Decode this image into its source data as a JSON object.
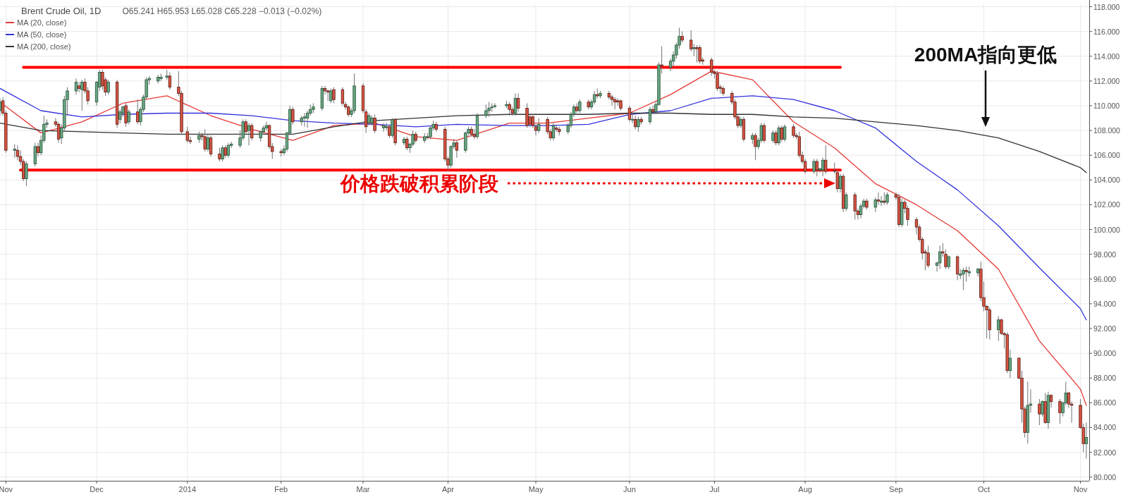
{
  "chart_data": {
    "type": "candlestick",
    "title": "Brent Crude Oil, 1D",
    "subtitle": "O65.241 H65.953 L65.028 C65.228 −0.013 (−0.02%)",
    "x": [
      "2013-10-30",
      "2013-10-31",
      "2013-11-01",
      "2013-11-04",
      "2013-11-05",
      "2013-11-06",
      "2013-11-07",
      "2013-11-08",
      "2013-11-11",
      "2013-11-12",
      "2013-11-13",
      "2013-11-14",
      "2013-11-15",
      "2013-11-18",
      "2013-11-19",
      "2013-11-20",
      "2013-11-21",
      "2013-11-22",
      "2013-11-25",
      "2013-11-26",
      "2013-11-27",
      "2013-11-28",
      "2013-11-29",
      "2013-12-02",
      "2013-12-03",
      "2013-12-04",
      "2013-12-05",
      "2013-12-06",
      "2013-12-09",
      "2013-12-10",
      "2013-12-11",
      "2013-12-12",
      "2013-12-13",
      "2013-12-16",
      "2013-12-17",
      "2013-12-18",
      "2013-12-19",
      "2013-12-20",
      "2013-12-23",
      "2013-12-24",
      "2013-12-26",
      "2013-12-27",
      "2013-12-30",
      "2013-12-31",
      "2014-01-02",
      "2014-01-03",
      "2014-01-06",
      "2014-01-07",
      "2014-01-08",
      "2014-01-09",
      "2014-01-10",
      "2014-01-13",
      "2014-01-14",
      "2014-01-15",
      "2014-01-16",
      "2014-01-17",
      "2014-01-20",
      "2014-01-21",
      "2014-01-22",
      "2014-01-23",
      "2014-01-24",
      "2014-01-27",
      "2014-01-28",
      "2014-01-29",
      "2014-01-30",
      "2014-01-31",
      "2014-02-03",
      "2014-02-04",
      "2014-02-05",
      "2014-02-06",
      "2014-02-07",
      "2014-02-10",
      "2014-02-11",
      "2014-02-12",
      "2014-02-13",
      "2014-02-14",
      "2014-02-17",
      "2014-02-18",
      "2014-02-19",
      "2014-02-20",
      "2014-02-21",
      "2014-02-24",
      "2014-02-25",
      "2014-02-26",
      "2014-02-27",
      "2014-02-28",
      "2014-03-03",
      "2014-03-04",
      "2014-03-05",
      "2014-03-06",
      "2014-03-07",
      "2014-03-10",
      "2014-03-11",
      "2014-03-12",
      "2014-03-13",
      "2014-03-14",
      "2014-03-17",
      "2014-03-18",
      "2014-03-19",
      "2014-03-20",
      "2014-03-21",
      "2014-03-24",
      "2014-03-25",
      "2014-03-26",
      "2014-03-27",
      "2014-03-28",
      "2014-03-31",
      "2014-04-01",
      "2014-04-02",
      "2014-04-03",
      "2014-04-04",
      "2014-04-07",
      "2014-04-08",
      "2014-04-09",
      "2014-04-10",
      "2014-04-11",
      "2014-04-14",
      "2014-04-15",
      "2014-04-16",
      "2014-04-17",
      "2014-04-21",
      "2014-04-22",
      "2014-04-23",
      "2014-04-24",
      "2014-04-25",
      "2014-04-28",
      "2014-04-29",
      "2014-04-30",
      "2014-05-01",
      "2014-05-02",
      "2014-05-05",
      "2014-05-06",
      "2014-05-07",
      "2014-05-08",
      "2014-05-09",
      "2014-05-12",
      "2014-05-13",
      "2014-05-14",
      "2014-05-15",
      "2014-05-16",
      "2014-05-19",
      "2014-05-20",
      "2014-05-21",
      "2014-05-22",
      "2014-05-23",
      "2014-05-26",
      "2014-05-27",
      "2014-05-28",
      "2014-05-29",
      "2014-05-30",
      "2014-06-02",
      "2014-06-03",
      "2014-06-04",
      "2014-06-05",
      "2014-06-06",
      "2014-06-09",
      "2014-06-10",
      "2014-06-11",
      "2014-06-12",
      "2014-06-13",
      "2014-06-16",
      "2014-06-17",
      "2014-06-18",
      "2014-06-19",
      "2014-06-20",
      "2014-06-23",
      "2014-06-24",
      "2014-06-25",
      "2014-06-26",
      "2014-06-27",
      "2014-06-30",
      "2014-07-01",
      "2014-07-02",
      "2014-07-03",
      "2014-07-04",
      "2014-07-07",
      "2014-07-08",
      "2014-07-09",
      "2014-07-10",
      "2014-07-11",
      "2014-07-14",
      "2014-07-15",
      "2014-07-16",
      "2014-07-17",
      "2014-07-18",
      "2014-07-21",
      "2014-07-22",
      "2014-07-23",
      "2014-07-24",
      "2014-07-25",
      "2014-07-28",
      "2014-07-29",
      "2014-07-30",
      "2014-07-31",
      "2014-08-01",
      "2014-08-04",
      "2014-08-05",
      "2014-08-06",
      "2014-08-07",
      "2014-08-08",
      "2014-08-11",
      "2014-08-12",
      "2014-08-13",
      "2014-08-14",
      "2014-08-15",
      "2014-08-18",
      "2014-08-19",
      "2014-08-20",
      "2014-08-21",
      "2014-08-22",
      "2014-08-25",
      "2014-08-26",
      "2014-08-27",
      "2014-08-28",
      "2014-08-29",
      "2014-09-01",
      "2014-09-02",
      "2014-09-03",
      "2014-09-04",
      "2014-09-05",
      "2014-09-08",
      "2014-09-09",
      "2014-09-10",
      "2014-09-11",
      "2014-09-12",
      "2014-09-15",
      "2014-09-16",
      "2014-09-17",
      "2014-09-18",
      "2014-09-19",
      "2014-09-22",
      "2014-09-23",
      "2014-09-24",
      "2014-09-25",
      "2014-09-26",
      "2014-09-29",
      "2014-09-30",
      "2014-10-01",
      "2014-10-02",
      "2014-10-03",
      "2014-10-06",
      "2014-10-07",
      "2014-10-08",
      "2014-10-09",
      "2014-10-10",
      "2014-10-13",
      "2014-10-14",
      "2014-10-15",
      "2014-10-16",
      "2014-10-17",
      "2014-10-20",
      "2014-10-21",
      "2014-10-22",
      "2014-10-23",
      "2014-10-24",
      "2014-10-27",
      "2014-10-28",
      "2014-10-29",
      "2014-10-30",
      "2014-10-31",
      "2014-11-03",
      "2014-11-04",
      "2014-11-05"
    ],
    "ohlc": [
      [
        109.6,
        110.6,
        109.2,
        110.3
      ],
      [
        110.4,
        110.7,
        109.2,
        109.4
      ],
      [
        109.4,
        109.6,
        106.2,
        106.4
      ],
      [
        106.4,
        106.9,
        105.8,
        106.5
      ],
      [
        106.4,
        106.8,
        105.6,
        105.9
      ],
      [
        105.9,
        106.4,
        105.2,
        105.5
      ],
      [
        105.5,
        105.7,
        103.9,
        104.1
      ],
      [
        104.1,
        105.5,
        103.5,
        105.3
      ],
      [
        105.3,
        107.0,
        105.1,
        106.7
      ],
      [
        106.7,
        107.0,
        105.9,
        106.2
      ],
      [
        106.2,
        107.6,
        106.0,
        107.2
      ],
      [
        107.2,
        109.2,
        107.0,
        108.5
      ],
      [
        108.5,
        108.9,
        108.2,
        108.6
      ],
      [
        108.7,
        109.0,
        108.3,
        108.5
      ],
      [
        108.5,
        108.7,
        107.0,
        107.3
      ],
      [
        107.4,
        108.5,
        106.9,
        108.2
      ],
      [
        108.2,
        110.8,
        108.0,
        110.5
      ],
      [
        110.5,
        111.5,
        109.2,
        111.2
      ],
      [
        111.2,
        112.2,
        110.9,
        111.9
      ],
      [
        111.6,
        111.9,
        111.1,
        111.4
      ],
      [
        111.3,
        112.1,
        109.6,
        111.9
      ],
      [
        111.9,
        112.2,
        111.0,
        111.2
      ],
      [
        111.2,
        111.5,
        110.1,
        110.4
      ],
      [
        110.3,
        112.0,
        110.0,
        111.9
      ],
      [
        111.5,
        112.9,
        111.2,
        112.7
      ],
      [
        112.7,
        112.9,
        111.3,
        111.6
      ],
      [
        112.1,
        112.3,
        110.8,
        111.1
      ],
      [
        111.1,
        112.1,
        110.9,
        111.9
      ],
      [
        111.9,
        112.1,
        108.2,
        108.5
      ],
      [
        108.9,
        109.7,
        108.6,
        109.5
      ],
      [
        109.4,
        110.0,
        109.1,
        109.9
      ],
      [
        110.0,
        110.2,
        108.3,
        108.6
      ],
      [
        108.7,
        109.7,
        108.5,
        109.5
      ],
      [
        109.5,
        110.5,
        108.5,
        108.7
      ],
      [
        108.7,
        109.9,
        108.4,
        109.7
      ],
      [
        109.7,
        110.9,
        109.5,
        110.7
      ],
      [
        110.7,
        112.3,
        110.5,
        112.1
      ],
      [
        112.1,
        112.4,
        111.7,
        112.2
      ],
      [
        112.0,
        112.5,
        111.8,
        112.3
      ],
      [
        112.2,
        112.6,
        112.0,
        112.3
      ],
      [
        112.3,
        112.9,
        112.1,
        112.4
      ],
      [
        112.4,
        112.7,
        111.3,
        111.5
      ],
      [
        111.5,
        112.8,
        110.8,
        111.0
      ],
      [
        111.0,
        111.2,
        107.7,
        107.9
      ],
      [
        107.9,
        108.3,
        107.0,
        107.2
      ],
      [
        107.2,
        107.5,
        106.9,
        107.1
      ],
      [
        107.3,
        107.9,
        107.0,
        107.6
      ],
      [
        107.6,
        107.8,
        107.2,
        107.5
      ],
      [
        107.5,
        108.1,
        106.3,
        106.5
      ],
      [
        106.5,
        107.7,
        106.3,
        107.4
      ],
      [
        107.4,
        107.6,
        105.9,
        106.1
      ],
      [
        106.1,
        106.6,
        105.5,
        105.7
      ],
      [
        105.7,
        106.8,
        105.5,
        106.6
      ],
      [
        106.6,
        106.8,
        105.8,
        106.0
      ],
      [
        106.0,
        107.0,
        105.8,
        106.8
      ],
      [
        106.8,
        107.1,
        106.6,
        106.9
      ],
      [
        106.8,
        108.0,
        106.6,
        107.4
      ],
      [
        107.4,
        108.9,
        107.2,
        108.7
      ],
      [
        108.7,
        108.9,
        107.7,
        107.9
      ],
      [
        108.0,
        108.6,
        106.8,
        108.4
      ],
      [
        108.4,
        108.6,
        107.2,
        107.4
      ],
      [
        107.4,
        108.0,
        107.1,
        107.9
      ],
      [
        107.9,
        108.4,
        107.7,
        108.2
      ],
      [
        108.2,
        108.7,
        108.0,
        108.4
      ],
      [
        108.4,
        108.5,
        106.5,
        106.7
      ],
      [
        106.7,
        107.0,
        105.7,
        106.3
      ],
      [
        106.3,
        106.5,
        105.9,
        106.2
      ],
      [
        106.2,
        106.8,
        106.0,
        106.5
      ],
      [
        106.5,
        107.9,
        106.3,
        107.8
      ],
      [
        107.8,
        110.0,
        107.6,
        109.7
      ],
      [
        109.7,
        109.9,
        108.5,
        108.7
      ],
      [
        108.7,
        109.2,
        108.4,
        109.0
      ],
      [
        109.0,
        109.4,
        108.3,
        109.1
      ],
      [
        109.0,
        109.6,
        108.2,
        109.4
      ],
      [
        109.4,
        110.1,
        109.2,
        109.7
      ],
      [
        109.7,
        110.2,
        109.4,
        109.9
      ],
      [
        109.8,
        111.6,
        109.6,
        111.4
      ],
      [
        111.4,
        111.6,
        110.9,
        111.2
      ],
      [
        111.2,
        111.3,
        110.4,
        111.1
      ],
      [
        110.4,
        111.4,
        110.2,
        111.2
      ],
      [
        111.3,
        111.5,
        110.2,
        110.5
      ],
      [
        111.3,
        111.5,
        110.0,
        110.2
      ],
      [
        110.1,
        110.3,
        109.7,
        109.9
      ],
      [
        109.9,
        110.0,
        109.1,
        109.3
      ],
      [
        109.3,
        109.8,
        109.1,
        109.6
      ],
      [
        109.6,
        112.6,
        109.4,
        111.6
      ],
      [
        111.6,
        111.8,
        109.4,
        109.6
      ],
      [
        109.5,
        109.7,
        107.8,
        108.3
      ],
      [
        108.6,
        109.4,
        108.4,
        109.2
      ],
      [
        108.6,
        109.2,
        108.4,
        109.0
      ],
      [
        109.0,
        109.3,
        107.8,
        108.0
      ],
      [
        108.2,
        108.6,
        107.9,
        108.4
      ],
      [
        108.3,
        108.6,
        108.0,
        108.3
      ],
      [
        108.3,
        108.5,
        107.4,
        107.6
      ],
      [
        107.6,
        109.0,
        107.4,
        108.9
      ],
      [
        108.9,
        109.0,
        106.8,
        107.0
      ],
      [
        107.0,
        107.5,
        106.8,
        107.3
      ],
      [
        107.3,
        107.5,
        106.4,
        106.6
      ],
      [
        106.6,
        107.0,
        106.2,
        106.9
      ],
      [
        106.9,
        108.0,
        106.7,
        107.7
      ],
      [
        107.7,
        107.9,
        107.0,
        107.2
      ],
      [
        107.2,
        107.8,
        107.0,
        107.5
      ],
      [
        107.5,
        107.8,
        107.3,
        107.5
      ],
      [
        107.5,
        108.4,
        107.3,
        108.2
      ],
      [
        108.2,
        108.8,
        108.0,
        108.5
      ],
      [
        108.5,
        108.7,
        107.9,
        108.1
      ],
      [
        108.1,
        108.3,
        105.5,
        105.7
      ],
      [
        105.7,
        105.9,
        104.7,
        105.2
      ],
      [
        105.2,
        106.8,
        105.0,
        106.7
      ],
      [
        106.7,
        107.3,
        106.5,
        107.0
      ],
      [
        107.0,
        107.2,
        105.8,
        106.4
      ],
      [
        106.4,
        107.9,
        106.2,
        107.8
      ],
      [
        107.8,
        108.3,
        107.6,
        108.1
      ],
      [
        108.1,
        108.3,
        107.5,
        107.7
      ],
      [
        107.7,
        108.1,
        107.3,
        107.5
      ],
      [
        107.5,
        109.4,
        107.3,
        109.2
      ],
      [
        109.2,
        110.1,
        109.0,
        109.6
      ],
      [
        109.6,
        110.3,
        109.1,
        109.8
      ],
      [
        109.9,
        110.2,
        109.5,
        109.9
      ],
      [
        110.0,
        110.2,
        109.8,
        110.0
      ],
      [
        110.0,
        110.4,
        109.8,
        110.1
      ],
      [
        110.1,
        110.3,
        109.2,
        109.7
      ],
      [
        109.7,
        109.9,
        109.2,
        109.4
      ],
      [
        109.4,
        111.0,
        109.2,
        110.6
      ],
      [
        110.6,
        111.0,
        109.5,
        109.8
      ],
      [
        109.8,
        110.2,
        108.2,
        108.4
      ],
      [
        109.1,
        109.3,
        108.3,
        108.5
      ],
      [
        109.1,
        109.3,
        108.2,
        108.4
      ],
      [
        108.3,
        108.5,
        107.6,
        108.0
      ],
      [
        108.0,
        109.0,
        107.8,
        108.5
      ],
      [
        108.9,
        109.1,
        107.7,
        107.9
      ],
      [
        107.9,
        108.1,
        107.2,
        107.4
      ],
      [
        107.4,
        108.6,
        107.2,
        108.4
      ],
      [
        108.2,
        108.4,
        107.9,
        108.1
      ],
      [
        108.1,
        108.3,
        107.6,
        107.9
      ],
      [
        107.9,
        108.6,
        107.7,
        108.4
      ],
      [
        108.4,
        109.5,
        108.2,
        109.3
      ],
      [
        109.3,
        110.1,
        109.1,
        109.9
      ],
      [
        109.9,
        110.2,
        109.4,
        109.6
      ],
      [
        109.6,
        110.5,
        109.4,
        110.3
      ],
      [
        110.3,
        110.5,
        109.7,
        109.9
      ],
      [
        109.9,
        110.5,
        109.7,
        110.3
      ],
      [
        110.3,
        111.2,
        110.1,
        110.9
      ],
      [
        110.9,
        111.4,
        110.6,
        110.8
      ],
      [
        110.8,
        111.2,
        110.6,
        111.0
      ],
      [
        111.0,
        111.2,
        110.5,
        110.7
      ],
      [
        110.7,
        110.9,
        110.0,
        110.5
      ],
      [
        110.5,
        110.7,
        109.7,
        110.3
      ],
      [
        110.4,
        110.6,
        110.0,
        110.3
      ],
      [
        110.4,
        110.5,
        109.6,
        109.8
      ],
      [
        109.8,
        110.0,
        108.7,
        108.9
      ],
      [
        108.9,
        109.4,
        108.6,
        108.9
      ],
      [
        108.9,
        109.2,
        108.1,
        108.3
      ],
      [
        108.3,
        109.1,
        107.9,
        108.9
      ],
      [
        108.9,
        109.1,
        108.5,
        108.7
      ],
      [
        108.7,
        109.9,
        108.5,
        109.7
      ],
      [
        109.7,
        110.0,
        109.3,
        109.5
      ],
      [
        109.5,
        110.3,
        109.3,
        110.1
      ],
      [
        110.1,
        113.5,
        110.0,
        113.3
      ],
      [
        113.3,
        114.8,
        112.6,
        113.2
      ],
      [
        113.1,
        113.8,
        112.8,
        113.6
      ],
      [
        113.6,
        114.4,
        113.1,
        114.1
      ],
      [
        114.1,
        115.1,
        113.8,
        114.9
      ],
      [
        114.9,
        116.3,
        114.6,
        115.6
      ],
      [
        115.6,
        116.0,
        115.1,
        115.3
      ],
      [
        115.3,
        116.1,
        114.4,
        114.6
      ],
      [
        114.6,
        115.0,
        114.0,
        114.7
      ],
      [
        114.7,
        114.9,
        113.5,
        114.6
      ],
      [
        114.7,
        114.9,
        113.4,
        113.6
      ],
      [
        113.7,
        113.9,
        113.3,
        113.6
      ],
      [
        113.7,
        113.9,
        112.4,
        112.7
      ],
      [
        112.7,
        112.9,
        112.2,
        112.6
      ],
      [
        112.6,
        112.8,
        111.2,
        111.4
      ],
      [
        111.5,
        111.7,
        111.0,
        111.4
      ],
      [
        111.4,
        111.6,
        110.8,
        111.0
      ],
      [
        111.0,
        111.2,
        110.1,
        110.3
      ],
      [
        110.3,
        110.5,
        108.9,
        109.1
      ],
      [
        109.1,
        109.3,
        108.2,
        108.4
      ],
      [
        108.4,
        109.1,
        108.2,
        108.9
      ],
      [
        108.9,
        109.1,
        107.1,
        107.3
      ],
      [
        107.3,
        107.8,
        106.9,
        107.6
      ],
      [
        107.6,
        107.8,
        105.6,
        106.7
      ],
      [
        106.7,
        107.4,
        106.5,
        107.2
      ],
      [
        107.2,
        108.6,
        107.0,
        108.4
      ],
      [
        108.4,
        108.6,
        107.0,
        107.2
      ],
      [
        107.2,
        108.0,
        107.0,
        107.8
      ],
      [
        107.8,
        108.0,
        106.8,
        107.0
      ],
      [
        107.0,
        108.4,
        106.8,
        108.2
      ],
      [
        108.2,
        108.4,
        107.1,
        107.3
      ],
      [
        107.3,
        108.5,
        107.1,
        108.3
      ],
      [
        108.3,
        108.5,
        107.4,
        107.6
      ],
      [
        107.6,
        107.8,
        107.3,
        107.5
      ],
      [
        107.5,
        107.9,
        105.8,
        106.0
      ],
      [
        106.0,
        106.3,
        105.3,
        105.5
      ],
      [
        105.5,
        105.7,
        104.5,
        104.7
      ],
      [
        104.7,
        105.7,
        104.5,
        105.5
      ],
      [
        105.5,
        105.7,
        104.3,
        104.8
      ],
      [
        104.8,
        105.0,
        104.6,
        104.9
      ],
      [
        104.8,
        105.8,
        104.3,
        105.6
      ],
      [
        105.6,
        106.8,
        104.5,
        104.7
      ],
      [
        104.8,
        105.4,
        104.5,
        104.7
      ],
      [
        104.6,
        104.8,
        103.0,
        103.3
      ],
      [
        103.3,
        104.5,
        103.0,
        104.3
      ],
      [
        104.3,
        104.5,
        101.4,
        101.7
      ],
      [
        101.7,
        103.0,
        101.5,
        102.8
      ],
      [
        102.8,
        103.0,
        100.8,
        101.5
      ],
      [
        101.5,
        101.7,
        100.8,
        101.2
      ],
      [
        101.2,
        102.1,
        100.9,
        101.9
      ],
      [
        101.9,
        102.5,
        101.7,
        102.3
      ],
      [
        102.3,
        102.5,
        101.6,
        101.8
      ],
      [
        101.8,
        102.6,
        101.4,
        102.4
      ],
      [
        102.4,
        103.0,
        102.0,
        102.3
      ],
      [
        102.2,
        102.7,
        101.9,
        102.3
      ],
      [
        102.3,
        103.0,
        102.0,
        102.2
      ],
      [
        102.2,
        103.0,
        102.0,
        102.8
      ],
      [
        102.8,
        103.0,
        102.4,
        102.6
      ],
      [
        102.6,
        102.9,
        100.2,
        100.4
      ],
      [
        100.4,
        102.5,
        100.2,
        102.2
      ],
      [
        102.2,
        102.4,
        101.3,
        101.7
      ],
      [
        101.7,
        101.9,
        100.3,
        100.8
      ],
      [
        100.8,
        101.0,
        99.6,
        100.2
      ],
      [
        100.2,
        100.4,
        99.0,
        99.2
      ],
      [
        99.2,
        99.4,
        97.6,
        98.1
      ],
      [
        98.2,
        98.4,
        96.7,
        98.1
      ],
      [
        98.1,
        98.7,
        96.9,
        97.1
      ],
      [
        97.1,
        97.4,
        96.6,
        97.3
      ],
      [
        97.3,
        98.7,
        96.8,
        98.2
      ],
      [
        98.2,
        98.9,
        97.8,
        98.1
      ],
      [
        98.0,
        98.4,
        96.8,
        97.0
      ],
      [
        97.0,
        97.9,
        96.8,
        97.8
      ],
      [
        97.8,
        97.9,
        95.9,
        96.4
      ],
      [
        96.3,
        96.8,
        96.0,
        96.4
      ],
      [
        96.4,
        96.9,
        95.1,
        96.7
      ],
      [
        96.7,
        97.0,
        95.8,
        96.6
      ],
      [
        96.5,
        97.0,
        96.2,
        96.6
      ],
      [
        96.5,
        96.9,
        96.2,
        96.8
      ],
      [
        96.8,
        97.4,
        94.2,
        94.5
      ],
      [
        94.5,
        95.8,
        93.4,
        93.8
      ],
      [
        93.8,
        93.9,
        91.2,
        93.5
      ],
      [
        93.5,
        93.7,
        91.1,
        91.9
      ],
      [
        91.9,
        93.0,
        91.0,
        92.7
      ],
      [
        92.7,
        92.8,
        91.5,
        91.6
      ],
      [
        91.6,
        91.7,
        90.4,
        91.5
      ],
      [
        91.5,
        91.7,
        88.4,
        88.6
      ],
      [
        88.6,
        90.3,
        88.0,
        89.6
      ],
      [
        89.6,
        89.7,
        87.9,
        88.0
      ],
      [
        88.0,
        88.6,
        84.4,
        85.5
      ],
      [
        85.5,
        85.7,
        83.2,
        83.6
      ],
      [
        83.6,
        87.7,
        82.7,
        85.8
      ],
      [
        85.8,
        87.1,
        85.2,
        85.9
      ],
      [
        85.9,
        86.3,
        84.2,
        85.1
      ],
      [
        85.1,
        86.2,
        84.9,
        86.1
      ],
      [
        86.1,
        86.8,
        84.3,
        84.4
      ],
      [
        84.4,
        86.9,
        83.9,
        86.6
      ],
      [
        86.6,
        86.7,
        85.6,
        86.1
      ],
      [
        86.1,
        86.3,
        84.3,
        85.2
      ],
      [
        85.2,
        86.1,
        84.9,
        86.0
      ],
      [
        86.0,
        87.7,
        85.8,
        86.8
      ],
      [
        86.8,
        86.9,
        85.6,
        85.9
      ],
      [
        85.9,
        86.1,
        84.4,
        85.8
      ],
      [
        85.8,
        86.3,
        83.9,
        84.0
      ],
      [
        84.0,
        84.3,
        82.0,
        82.7
      ],
      [
        82.7,
        84.4,
        81.5,
        83.2
      ]
    ],
    "series": [
      {
        "type": "line",
        "name": "MA (20, close)",
        "color": "#e53935",
        "x": [
          "2013-10-30",
          "2013-11-13",
          "2013-11-27",
          "2013-12-11",
          "2013-12-26",
          "2014-01-10",
          "2014-01-24",
          "2014-02-07",
          "2014-02-21",
          "2014-03-07",
          "2014-03-21",
          "2014-04-04",
          "2014-04-22",
          "2014-05-05",
          "2014-05-19",
          "2014-06-02",
          "2014-06-16",
          "2014-06-30",
          "2014-07-14",
          "2014-07-28",
          "2014-08-11",
          "2014-08-25",
          "2014-09-08",
          "2014-09-22",
          "2014-10-06",
          "2014-10-20",
          "2014-11-03",
          "2014-11-05"
        ],
        "values": [
          110.3,
          107.8,
          108.7,
          110.2,
          110.8,
          109.2,
          108.1,
          107.2,
          108.4,
          108.6,
          107.5,
          107.2,
          108.6,
          108.6,
          109.0,
          109.4,
          110.9,
          112.8,
          112.1,
          108.7,
          106.6,
          103.7,
          102.0,
          99.9,
          96.8,
          91.0,
          87.1,
          85.8
        ]
      },
      {
        "type": "line",
        "name": "MA (50, close)",
        "color": "#3333dd",
        "x": [
          "2013-10-30",
          "2013-11-13",
          "2013-11-27",
          "2013-12-11",
          "2013-12-26",
          "2014-01-10",
          "2014-01-24",
          "2014-02-07",
          "2014-02-21",
          "2014-03-07",
          "2014-03-21",
          "2014-04-04",
          "2014-04-22",
          "2014-05-05",
          "2014-05-19",
          "2014-06-02",
          "2014-06-16",
          "2014-06-30",
          "2014-07-14",
          "2014-07-28",
          "2014-08-11",
          "2014-08-25",
          "2014-09-08",
          "2014-09-22",
          "2014-10-06",
          "2014-10-20",
          "2014-11-03",
          "2014-11-05"
        ],
        "values": [
          111.4,
          109.6,
          109.1,
          109.3,
          109.4,
          109.4,
          109.2,
          108.8,
          108.6,
          108.5,
          108.3,
          108.5,
          108.4,
          108.4,
          108.5,
          109.3,
          109.6,
          110.6,
          110.8,
          110.5,
          109.6,
          108.2,
          105.5,
          103.2,
          100.3,
          96.9,
          93.6,
          92.7
        ]
      },
      {
        "type": "line",
        "name": "MA (200, close)",
        "color": "#333333",
        "x": [
          "2013-10-30",
          "2013-11-13",
          "2013-11-27",
          "2013-12-11",
          "2013-12-26",
          "2014-01-10",
          "2014-01-24",
          "2014-02-07",
          "2014-02-21",
          "2014-03-07",
          "2014-03-21",
          "2014-04-04",
          "2014-04-22",
          "2014-05-05",
          "2014-05-19",
          "2014-06-02",
          "2014-06-16",
          "2014-06-30",
          "2014-07-14",
          "2014-07-28",
          "2014-08-11",
          "2014-08-25",
          "2014-09-08",
          "2014-09-22",
          "2014-10-06",
          "2014-10-20",
          "2014-11-03",
          "2014-11-05"
        ],
        "values": [
          108.6,
          108.0,
          107.9,
          107.8,
          107.7,
          107.7,
          107.7,
          107.7,
          108.3,
          108.8,
          109.0,
          109.2,
          109.3,
          109.3,
          109.3,
          109.4,
          109.4,
          109.3,
          109.3,
          109.1,
          109.0,
          108.7,
          108.4,
          108.0,
          107.4,
          106.3,
          105.0,
          104.6
        ]
      },
      {
        "type": "line",
        "color": "#ff0000",
        "x": [
          "2013-11-07",
          "2014-08-13"
        ],
        "values": [
          113.1,
          113.1
        ]
      },
      {
        "type": "line",
        "color": "#ff0000",
        "x": [
          "2013-11-06",
          "2014-08-13"
        ],
        "values": [
          104.8,
          104.8
        ]
      }
    ],
    "annotations": [
      "价格跌破积累阶段",
      "200MA指向更低"
    ],
    "xlim": [
      "2013-10-30",
      "2014-11-06"
    ],
    "xticks": [
      {
        "value": "2013-11-01",
        "label": "Nov"
      },
      {
        "value": "2013-12-02",
        "label": "Dec"
      },
      {
        "value": "2014-01-02",
        "label": "2014"
      },
      {
        "value": "2014-02-03",
        "label": "Feb"
      },
      {
        "value": "2014-03-03",
        "label": "Mar"
      },
      {
        "value": "2014-04-01",
        "label": "Apr"
      },
      {
        "value": "2014-05-01",
        "label": "May"
      },
      {
        "value": "2014-06-02",
        "label": "Jun"
      },
      {
        "value": "2014-07-01",
        "label": "Jul"
      },
      {
        "value": "2014-08-01",
        "label": "Aug"
      },
      {
        "value": "2014-09-01",
        "label": "Sep"
      },
      {
        "value": "2014-10-01",
        "label": "Oct"
      },
      {
        "value": "2014-11-03",
        "label": "Nov"
      }
    ],
    "ylim": [
      79.7,
      118.2
    ],
    "yticks": [
      {
        "value": 80,
        "label": "80.000"
      },
      {
        "value": 82,
        "label": "82.000"
      },
      {
        "value": 84,
        "label": "84.000"
      },
      {
        "value": 86,
        "label": "86.000"
      },
      {
        "value": 88,
        "label": "88.000"
      },
      {
        "value": 90,
        "label": "90.000"
      },
      {
        "value": 92,
        "label": "92.000"
      },
      {
        "value": 94,
        "label": "94.000"
      },
      {
        "value": 96,
        "label": "96.000"
      },
      {
        "value": 98,
        "label": "98.000"
      },
      {
        "value": 100,
        "label": "100.000"
      },
      {
        "value": 102,
        "label": "102.000"
      },
      {
        "value": 104,
        "label": "104.000"
      },
      {
        "value": 106,
        "label": "106.000"
      },
      {
        "value": 108,
        "label": "108.000"
      },
      {
        "value": 110,
        "label": "110.000"
      },
      {
        "value": 112,
        "label": "112.000"
      },
      {
        "value": 114,
        "label": "114.000"
      },
      {
        "value": 116,
        "label": "116.000"
      },
      {
        "value": 118,
        "label": "118.000"
      }
    ],
    "grid": true,
    "legend": "top left"
  }
}
